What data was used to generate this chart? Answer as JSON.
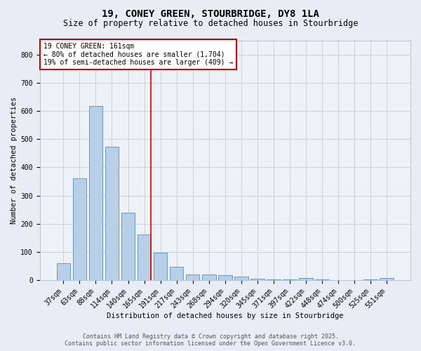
{
  "title1": "19, CONEY GREEN, STOURBRIDGE, DY8 1LA",
  "title2": "Size of property relative to detached houses in Stourbridge",
  "xlabel": "Distribution of detached houses by size in Stourbridge",
  "ylabel": "Number of detached properties",
  "categories": [
    "37sqm",
    "63sqm",
    "88sqm",
    "114sqm",
    "140sqm",
    "165sqm",
    "191sqm",
    "217sqm",
    "243sqm",
    "268sqm",
    "294sqm",
    "320sqm",
    "345sqm",
    "371sqm",
    "397sqm",
    "422sqm",
    "448sqm",
    "474sqm",
    "500sqm",
    "525sqm",
    "551sqm"
  ],
  "values": [
    60,
    360,
    617,
    474,
    238,
    163,
    98,
    47,
    21,
    20,
    18,
    13,
    5,
    3,
    2,
    8,
    2,
    1,
    1,
    2,
    7
  ],
  "bar_color": "#b8cfe8",
  "bar_edge_color": "#5b8db8",
  "vline_bin_index": 5,
  "vline_color": "#cc0000",
  "annotation_title": "19 CONEY GREEN: 161sqm",
  "annotation_line1": "← 80% of detached houses are smaller (1,704)",
  "annotation_line2": "19% of semi-detached houses are larger (409) →",
  "annotation_box_color": "#cc0000",
  "footer1": "Contains HM Land Registry data © Crown copyright and database right 2025.",
  "footer2": "Contains public sector information licensed under the Open Government Licence v3.0.",
  "background_color": "#e8edf5",
  "plot_background": "#edf1f8",
  "ylim": [
    0,
    850
  ],
  "yticks": [
    0,
    100,
    200,
    300,
    400,
    500,
    600,
    700,
    800
  ],
  "title1_fontsize": 10,
  "title2_fontsize": 8.5,
  "tick_fontsize": 7,
  "label_fontsize": 7.5,
  "annotation_fontsize": 7,
  "footer_fontsize": 6
}
